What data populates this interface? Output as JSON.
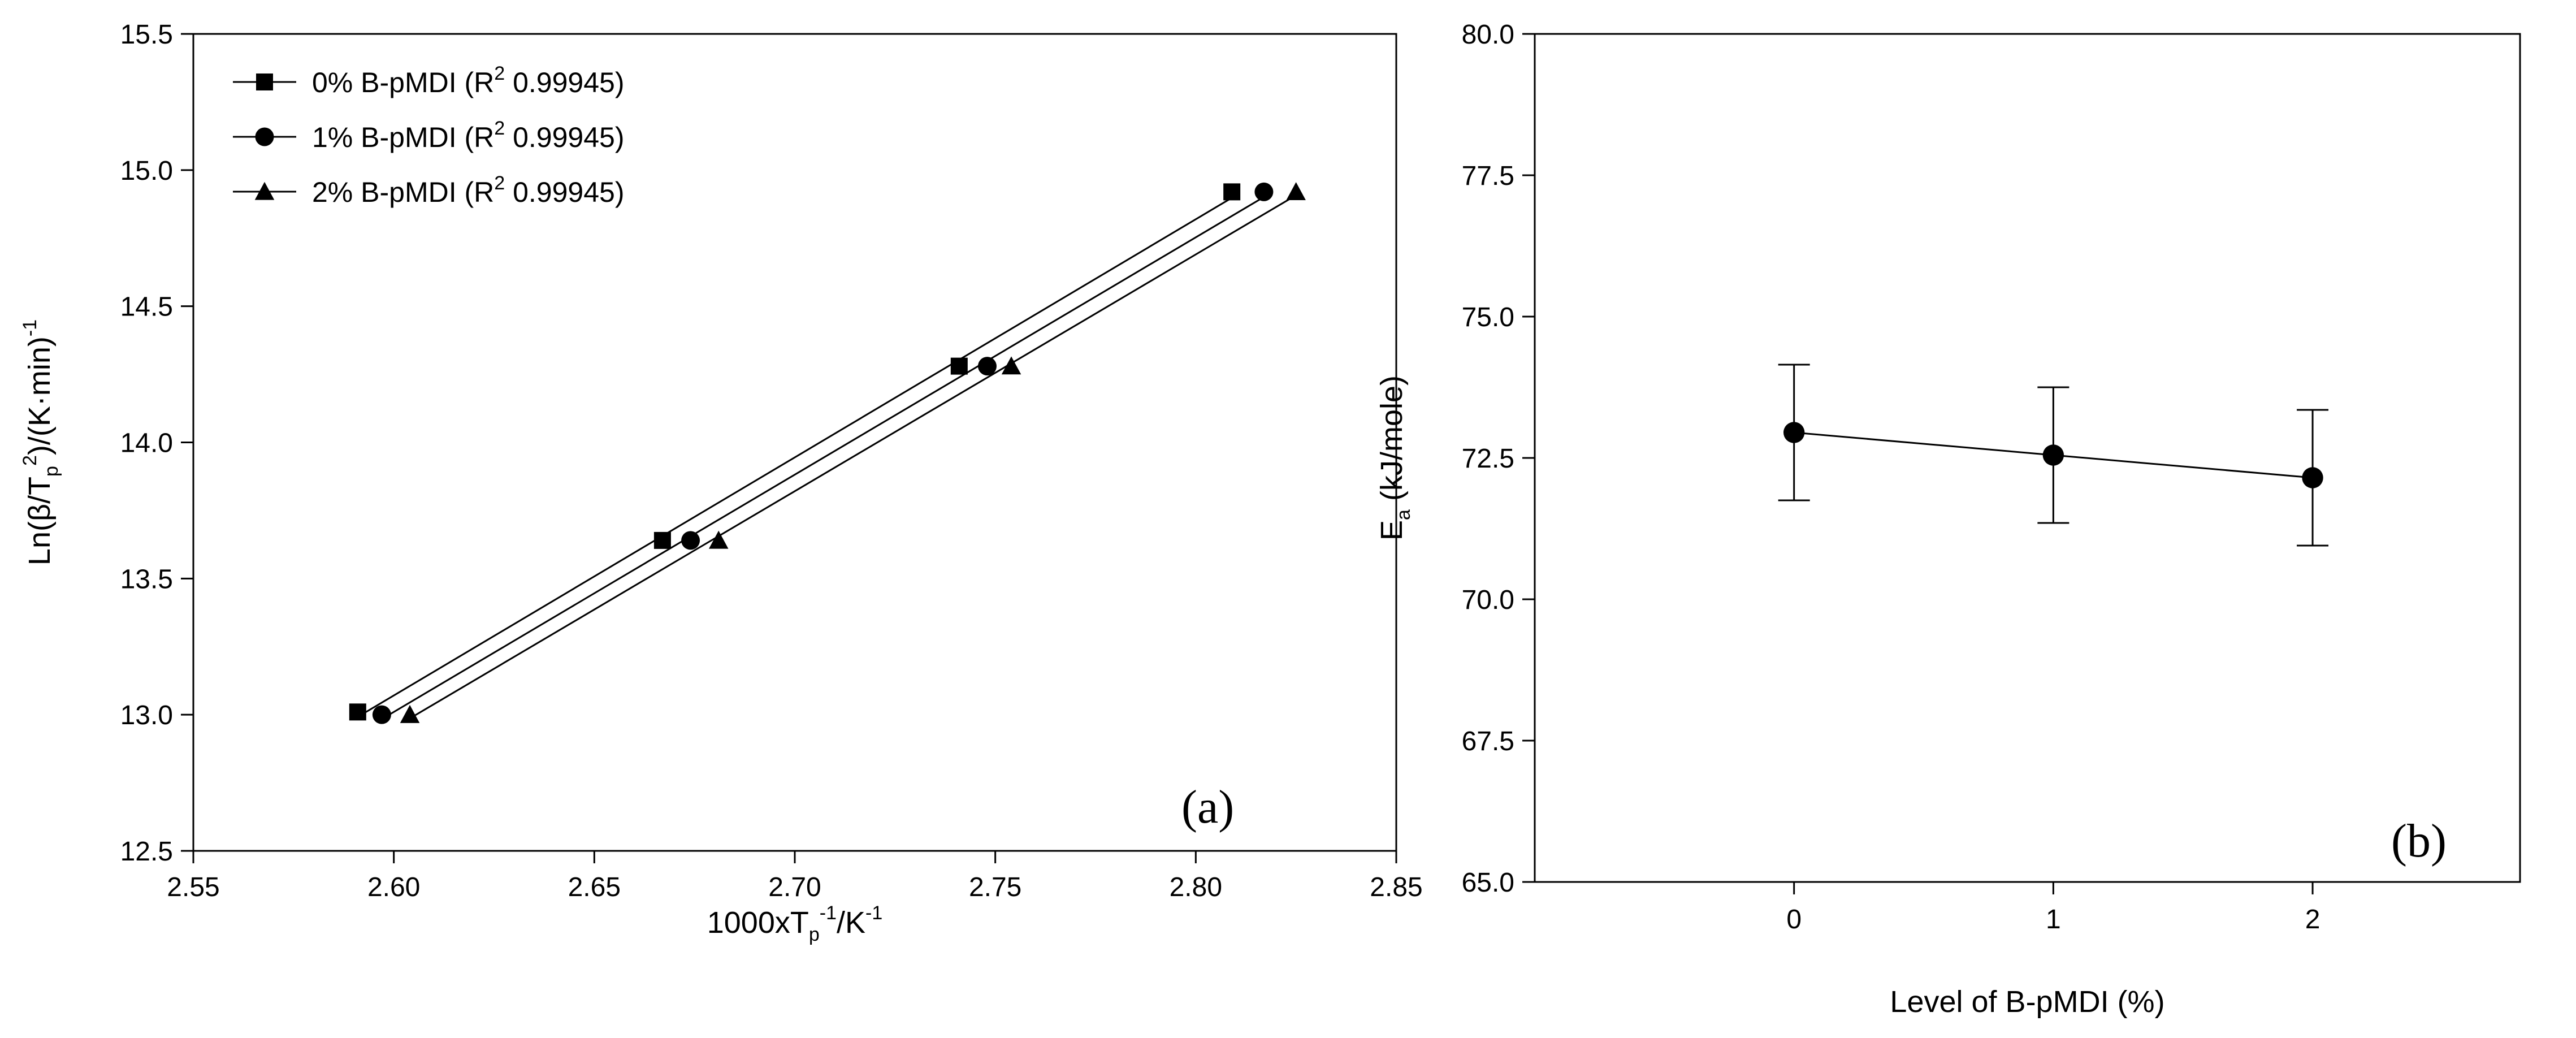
{
  "chart_data": [
    {
      "type": "scatter",
      "panel_label": "(a)",
      "xlabel": {
        "prefix": "1000xT",
        "sub": "p",
        "sup": "-1",
        "suffix": "/K",
        "suffix_sup": "-1"
      },
      "ylabel": {
        "prefix": "Ln(β/T",
        "sub": "p",
        "sup": "2",
        "suffix": ")/(K·min)",
        "suffix_sup": "-1"
      },
      "xlim": [
        2.55,
        2.85
      ],
      "ylim": [
        12.5,
        15.5
      ],
      "xticks": [
        "2.55",
        "2.60",
        "2.65",
        "2.70",
        "2.75",
        "2.80",
        "2.85"
      ],
      "yticks": [
        "12.5",
        "13.0",
        "13.5",
        "14.0",
        "14.5",
        "15.0",
        "15.5"
      ],
      "grid": false,
      "legend": {
        "placement": "top-left",
        "entries": [
          {
            "label": "0% B-pMDI (R",
            "sup": "2",
            "tail": " 0.99945)",
            "marker": "square"
          },
          {
            "label": "1% B-pMDI (R",
            "sup": "2",
            "tail": " 0.99945)",
            "marker": "circle"
          },
          {
            "label": "2% B-pMDI (R",
            "sup": "2",
            "tail": " 0.99945)",
            "marker": "triangle"
          }
        ]
      },
      "series": [
        {
          "name": "0% B-pMDI",
          "marker": "square",
          "fit_line": true,
          "x": [
            2.591,
            2.667,
            2.741,
            2.809
          ],
          "y": [
            13.01,
            13.64,
            14.28,
            14.92
          ]
        },
        {
          "name": "1% B-pMDI",
          "marker": "circle",
          "fit_line": true,
          "x": [
            2.597,
            2.674,
            2.748,
            2.817
          ],
          "y": [
            13.0,
            13.64,
            14.28,
            14.92
          ]
        },
        {
          "name": "2% B-pMDI",
          "marker": "triangle",
          "fit_line": true,
          "x": [
            2.604,
            2.681,
            2.754,
            2.825
          ],
          "y": [
            13.0,
            13.64,
            14.28,
            14.92
          ]
        }
      ]
    },
    {
      "type": "line",
      "panel_label": "(b)",
      "xlabel": {
        "prefix": "Level of B-pMDI (%)"
      },
      "ylabel": {
        "prefix": "E",
        "sub": "a",
        "suffix": " (kJ/mole)"
      },
      "xlim": [
        -1,
        2.8
      ],
      "ylim": [
        65.0,
        80.0
      ],
      "xticks": [
        "0",
        "1",
        "2"
      ],
      "yticks": [
        "65.0",
        "67.5",
        "70.0",
        "72.5",
        "75.0",
        "77.5",
        "80.0"
      ],
      "grid": false,
      "series": [
        {
          "marker": "circle",
          "x": [
            0,
            1,
            2
          ],
          "y": [
            72.95,
            72.55,
            72.15
          ],
          "error": [
            1.2,
            1.2,
            1.2
          ]
        }
      ]
    }
  ]
}
